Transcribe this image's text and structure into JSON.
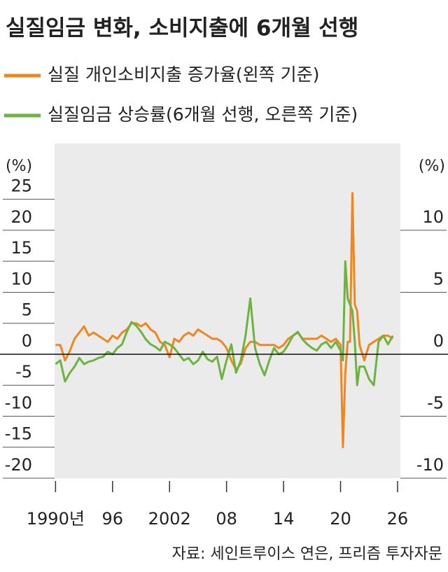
{
  "chart_data": {
    "type": "line",
    "title": "실질임금 변화, 소비지출에 6개월 선행",
    "source": "자료: 세인트루이스 연은, 프리즘 투자자문",
    "y_unit": "(%)",
    "y2_unit": "(%)",
    "x": [
      1990,
      1990.5,
      1991,
      1991.5,
      1992,
      1992.5,
      1993,
      1993.5,
      1994,
      1994.5,
      1995,
      1995.5,
      1996,
      1996.5,
      1997,
      1997.5,
      1998,
      1998.5,
      1999,
      1999.5,
      2000,
      2000.5,
      2001,
      2001.5,
      2002,
      2002.5,
      2003,
      2003.5,
      2004,
      2004.5,
      2005,
      2005.5,
      2006,
      2006.5,
      2007,
      2007.5,
      2008,
      2008.5,
      2009,
      2009.5,
      2010,
      2010.5,
      2011,
      2011.5,
      2012,
      2012.5,
      2013,
      2013.5,
      2014,
      2014.5,
      2015,
      2015.5,
      2016,
      2016.5,
      2017,
      2017.5,
      2018,
      2018.5,
      2019,
      2019.5,
      2020,
      2020.25,
      2020.5,
      2020.75,
      2021,
      2021.25,
      2021.5,
      2021.75,
      2022,
      2022.5,
      2023,
      2023.5,
      2024,
      2024.5,
      2025,
      2025.5
    ],
    "series": [
      {
        "name": "실질 개인소비지출 증가율(왼쪽 기준)",
        "color": "#f0871e",
        "axis": "y",
        "values": [
          1.5,
          1.5,
          -1.0,
          0.5,
          2.5,
          3.5,
          4.5,
          3.0,
          3.5,
          3.0,
          2.5,
          2.0,
          3.0,
          2.5,
          3.5,
          4.0,
          5.0,
          5.0,
          4.5,
          5.0,
          4.0,
          3.5,
          2.0,
          1.5,
          -0.5,
          2.5,
          2.0,
          3.0,
          3.5,
          3.0,
          4.0,
          3.5,
          3.0,
          2.5,
          2.5,
          2.0,
          1.0,
          -1.0,
          -2.5,
          -1.5,
          1.0,
          2.0,
          2.0,
          1.5,
          1.5,
          1.5,
          1.5,
          1.0,
          1.5,
          2.5,
          3.0,
          3.5,
          2.5,
          2.5,
          2.5,
          2.5,
          3.0,
          2.5,
          2.0,
          2.5,
          1.5,
          -15,
          -3.0,
          2.0,
          2.0,
          26,
          8.0,
          7.0,
          1.5,
          -1.0,
          1.5,
          2.0,
          2.5,
          3.0,
          3.0,
          2.5
        ]
      },
      {
        "name": "실질임금 상승률(6개월 선행, 오른쪽 기준)",
        "color": "#6cb33f",
        "axis": "y2",
        "values": [
          -0.8,
          -0.5,
          -2.2,
          -1.5,
          -1.0,
          -0.3,
          -0.8,
          -0.6,
          -0.5,
          -0.3,
          -0.2,
          0.2,
          0.0,
          0.5,
          0.8,
          1.8,
          2.6,
          2.3,
          1.8,
          1.2,
          0.8,
          0.6,
          0.3,
          1.0,
          0.8,
          0.5,
          0.0,
          -0.5,
          -0.3,
          -0.8,
          -0.5,
          0.2,
          -0.4,
          -0.6,
          -0.2,
          -2.0,
          -0.5,
          0.8,
          -1.5,
          -0.5,
          1.5,
          4.5,
          0.5,
          -0.8,
          -1.7,
          -0.5,
          0.5,
          0.0,
          0.2,
          0.8,
          1.5,
          1.8,
          1.2,
          0.8,
          0.5,
          0.3,
          0.8,
          1.0,
          0.5,
          1.0,
          0.3,
          -0.5,
          7.5,
          4.5,
          4.0,
          3.5,
          1.0,
          -2.5,
          -1.0,
          -1.0,
          -2.0,
          -2.5,
          1.0,
          1.5,
          0.8,
          1.5
        ]
      }
    ],
    "xlim": [
      1989.9,
      2026.3
    ],
    "xticks": [
      {
        "value": 1990,
        "label": "1990년"
      },
      {
        "value": 1996,
        "label": "96"
      },
      2002,
      {
        "value": 2008,
        "label": "08"
      },
      {
        "value": 2014,
        "label": "14"
      },
      {
        "value": 2020,
        "label": "20"
      },
      {
        "value": 2026,
        "label": "26"
      }
    ],
    "ylim": [
      -20,
      34
    ],
    "yticks": [
      25,
      20,
      15,
      10,
      5,
      0,
      -5,
      -10,
      -15,
      -20
    ],
    "y2lim": [
      -10,
      17
    ],
    "y2ticks": [
      10,
      5,
      0,
      -5,
      -10
    ],
    "background": "#ebebeb"
  }
}
